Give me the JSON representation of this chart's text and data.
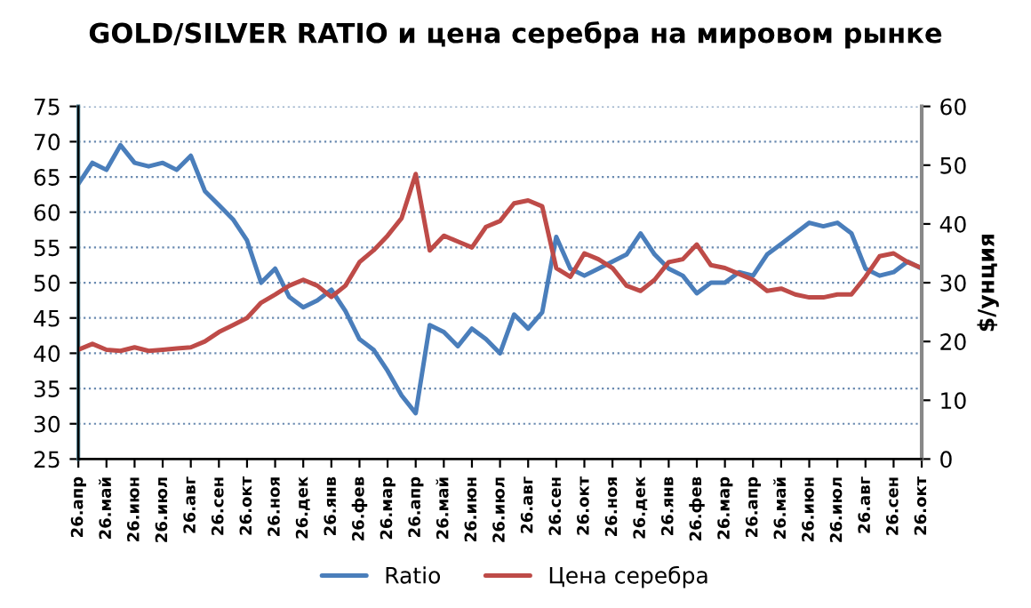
{
  "chart_data": {
    "type": "line",
    "title": "GOLD/SILVER RATIO и цена серебра на мировом рынке",
    "y2label": "$/унция",
    "categories": [
      "26.апр",
      null,
      "26.май",
      null,
      "26.июн",
      null,
      "26.июл",
      null,
      "26.авг",
      null,
      "26.сен",
      null,
      "26.окт",
      null,
      "26.ноя",
      null,
      "26.дек",
      null,
      "26.янв",
      null,
      "26.фев",
      null,
      "26.мар",
      null,
      "26.апр",
      null,
      "26.май",
      null,
      "26.июн",
      null,
      "26.июл",
      null,
      "26.авг",
      null,
      "26.сен",
      null,
      "26.окт",
      null,
      "26.ноя",
      null,
      "26.дек",
      null,
      "26.янв",
      null,
      "26.фев",
      null,
      "26.мар",
      null,
      "26.апр",
      null,
      "26.май",
      null,
      "26.июн",
      null,
      "26.июл",
      null,
      "26.авг",
      null,
      "26.сен",
      null,
      "26.окт"
    ],
    "ylim": [
      25,
      75
    ],
    "yticks": [
      25,
      30,
      35,
      40,
      45,
      50,
      55,
      60,
      65,
      70,
      75
    ],
    "y2lim": [
      0,
      60
    ],
    "y2ticks": [
      0,
      10,
      20,
      30,
      40,
      50,
      60
    ],
    "grid": "y",
    "legend": "bottom",
    "line_style": "solid",
    "series": [
      {
        "name": "Ratio",
        "color": "#4a7ebb",
        "values": [
          64,
          67,
          66,
          69.5,
          67,
          66.5,
          67,
          66,
          68,
          63,
          61,
          59,
          56,
          50,
          52,
          48,
          46.5,
          47.5,
          49,
          46,
          42,
          40.5,
          37.5,
          34,
          31.5,
          44,
          43,
          41,
          43.5,
          42,
          40,
          45.5,
          43.5,
          45.8,
          56.5,
          52,
          51,
          52,
          53,
          54,
          57,
          54,
          52,
          51,
          48.5,
          50,
          50,
          51.5,
          51,
          54,
          55.5,
          57,
          58.5,
          58,
          58.5,
          57,
          52,
          51,
          51.5,
          53,
          52
        ]
      },
      {
        "name": "Цена серебра",
        "color": "#be4b48",
        "axis": "y2",
        "values": [
          18.6,
          19.6,
          18.6,
          18.4,
          19,
          18.4,
          18.6,
          18.8,
          19,
          20,
          21.6,
          22.8,
          24,
          26.6,
          28,
          29.5,
          30.5,
          29.5,
          27.6,
          29.5,
          33.5,
          35.5,
          38,
          41,
          48.5,
          35.5,
          38,
          37,
          36,
          39.5,
          40.5,
          43.5,
          44,
          43,
          32.5,
          31,
          35,
          34,
          32.5,
          29.5,
          28.6,
          30.5,
          33.5,
          34,
          36.5,
          33,
          32.5,
          31.5,
          30.5,
          28.6,
          29,
          28,
          27.5,
          27.5,
          28,
          28,
          31,
          34.5,
          35,
          33.5,
          32.5
        ]
      }
    ]
  }
}
